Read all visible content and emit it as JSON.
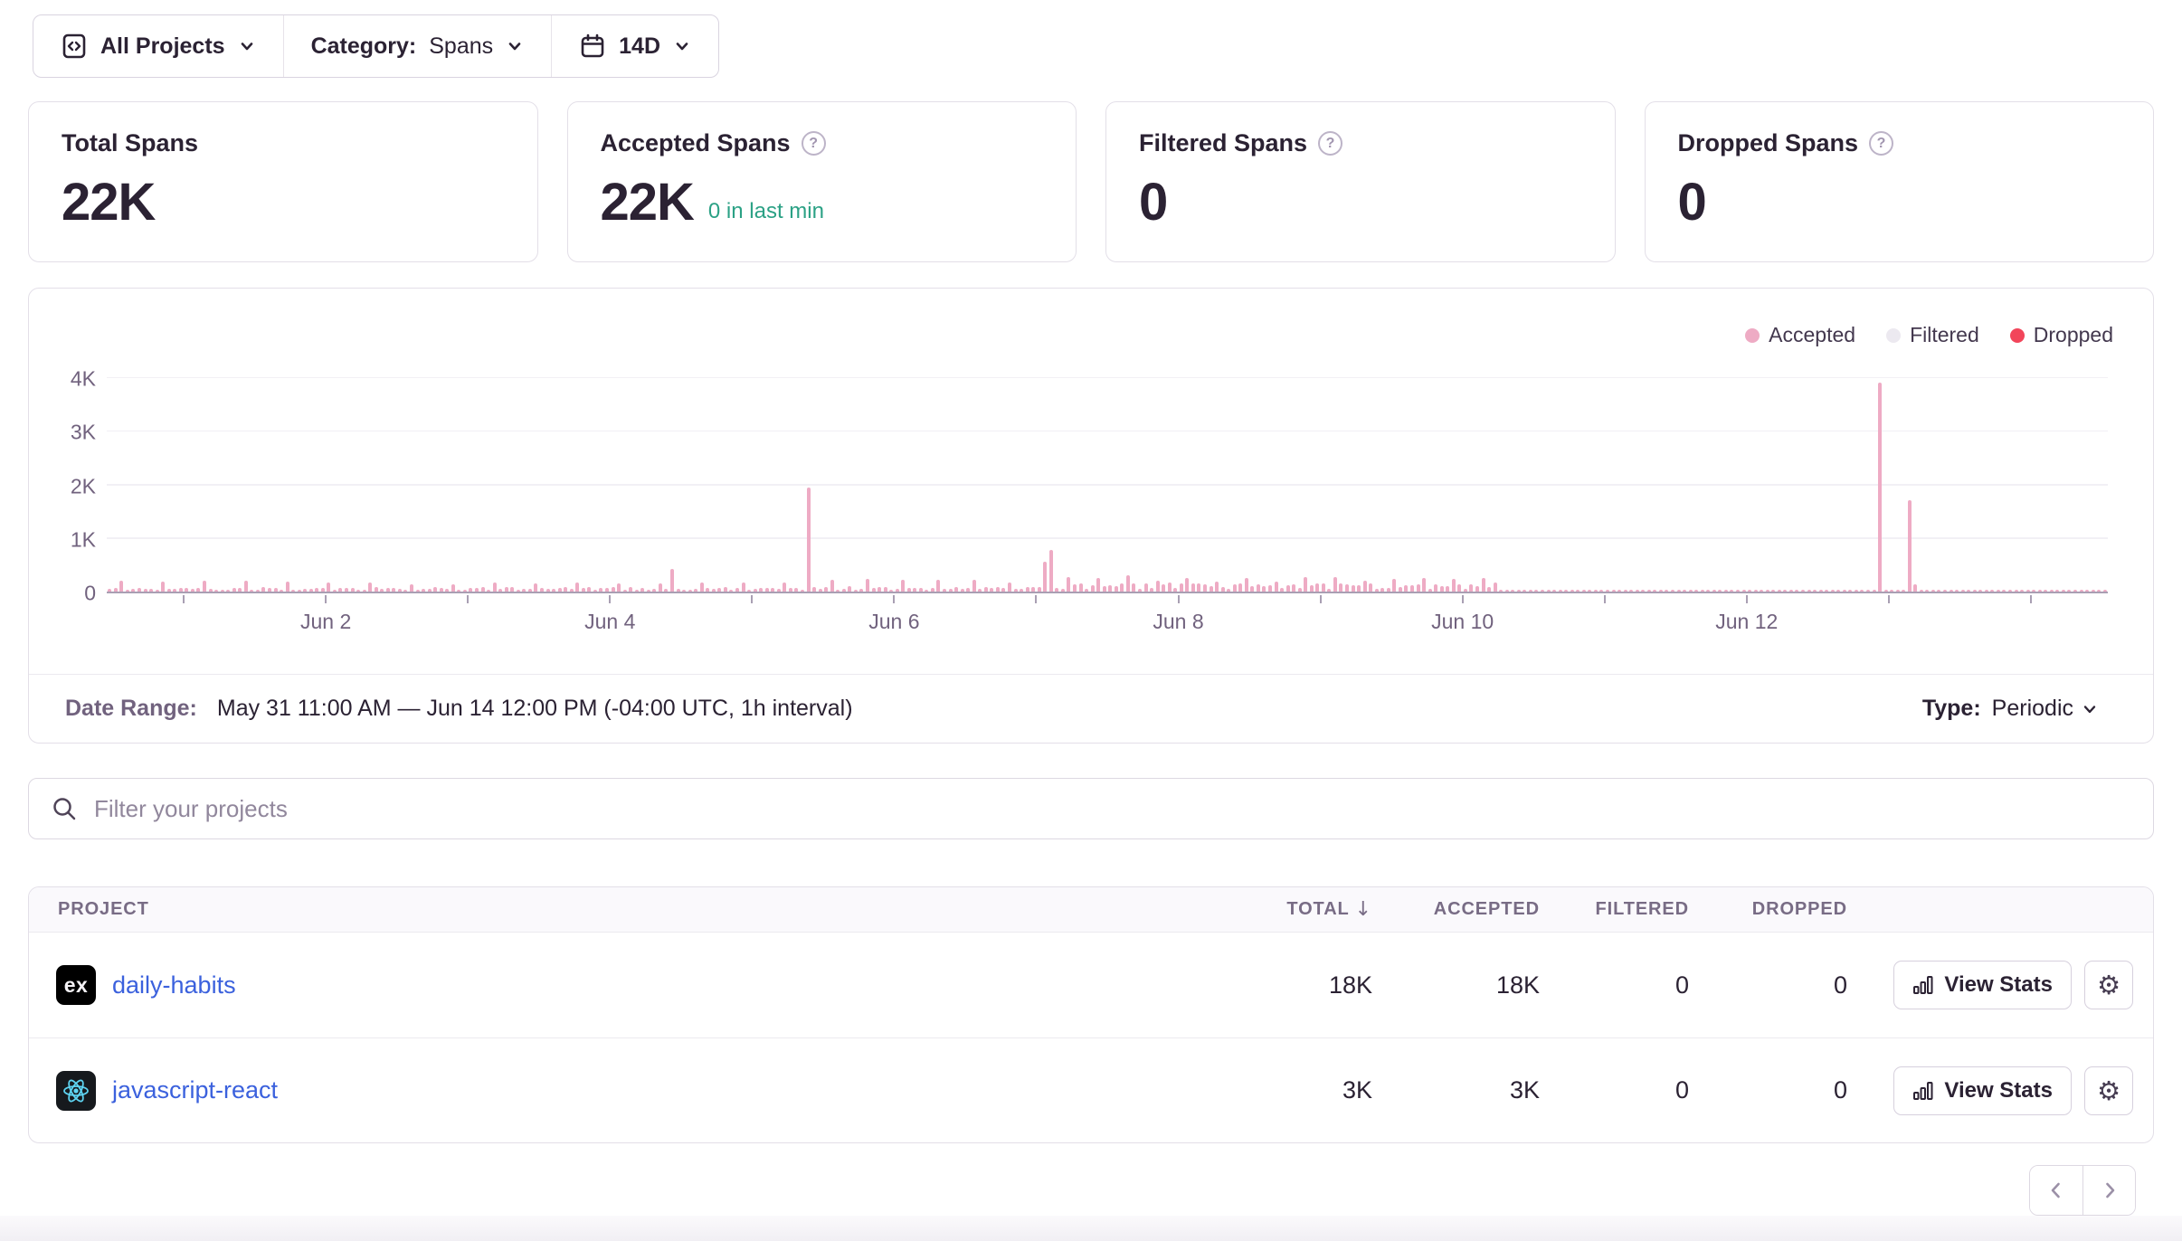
{
  "filters": {
    "projects_value": "All Projects",
    "category_label": "Category:",
    "category_value": "Spans",
    "date_range_value": "14D"
  },
  "cards": [
    {
      "title": "Total Spans",
      "value": "22K"
    },
    {
      "title": "Accepted Spans",
      "value": "22K",
      "note": "0 in last min"
    },
    {
      "title": "Filtered Spans",
      "value": "0"
    },
    {
      "title": "Dropped Spans",
      "value": "0"
    }
  ],
  "chart_data": {
    "type": "bar",
    "x_axis": {
      "start": "May 31 11:00 AM",
      "end": "Jun 14 12:00 PM",
      "interval": "1h",
      "total_bars": 338,
      "day_tick_hours": [
        13,
        37,
        61,
        85,
        109,
        133,
        157,
        181,
        205,
        229,
        253,
        277,
        301,
        325
      ],
      "labels": [
        {
          "text": "Jun 2",
          "hour": 37
        },
        {
          "text": "Jun 4",
          "hour": 85
        },
        {
          "text": "Jun 6",
          "hour": 133
        },
        {
          "text": "Jun 8",
          "hour": 181
        },
        {
          "text": "Jun 10",
          "hour": 229
        },
        {
          "text": "Jun 12",
          "hour": 277
        }
      ]
    },
    "y_axis": {
      "ticks": [
        "0",
        "1K",
        "2K",
        "3K",
        "4K"
      ],
      "max": 4000
    },
    "series": [
      {
        "name": "Accepted",
        "color": "#EEABC4"
      },
      {
        "name": "Filtered",
        "color": "#ECE9F0"
      },
      {
        "name": "Dropped",
        "color": "#F2455A"
      }
    ],
    "accepted_spikes": [
      [
        95,
        420
      ],
      [
        118,
        1950
      ],
      [
        158,
        560
      ],
      [
        159,
        780
      ],
      [
        299,
        3900
      ],
      [
        304,
        1700
      ],
      [
        305,
        130
      ]
    ],
    "accepted_noise_segments": [
      {
        "from": 0,
        "to": 116,
        "min": 20,
        "max": 85,
        "bump_every": 7,
        "bump_min": 130,
        "bump_max": 205
      },
      {
        "from": 117,
        "to": 157,
        "min": 28,
        "max": 100,
        "bump_every": 6,
        "bump_min": 150,
        "bump_max": 230
      },
      {
        "from": 158,
        "to": 234,
        "min": 45,
        "max": 165,
        "bump_every": 5,
        "bump_min": 180,
        "bump_max": 300
      },
      {
        "from": 235,
        "to": 337,
        "min": 16,
        "max": 36,
        "bump_every": 0,
        "bump_min": 0,
        "bump_max": 0
      }
    ],
    "filtered_values": "all zero",
    "dropped_values": "all zero"
  },
  "date_range": {
    "label": "Date Range:",
    "value": "May 31 11:00 AM — Jun 14 12:00 PM (-04:00 UTC, 1h interval)"
  },
  "type_selector": {
    "label": "Type:",
    "value": "Periodic"
  },
  "search": {
    "placeholder": "Filter your projects"
  },
  "table": {
    "columns": [
      "PROJECT",
      "TOTAL",
      "ACCEPTED",
      "FILTERED",
      "DROPPED"
    ],
    "view_stats_label": "View Stats",
    "rows": [
      {
        "project": "daily-habits",
        "platform": "expo",
        "platform_badge": "ex",
        "total": "18K",
        "accepted": "18K",
        "filtered": "0",
        "dropped": "0"
      },
      {
        "project": "javascript-react",
        "platform": "react",
        "total": "3K",
        "accepted": "3K",
        "filtered": "0",
        "dropped": "0"
      }
    ]
  },
  "icons": {
    "gear": "⚙",
    "sort_desc": "↓"
  },
  "colors": {
    "text_dark": "#2B2233",
    "text_muted": "#71627E",
    "border": "#E3DFE8",
    "link_blue": "#3B61DD",
    "teal": "#2BA185",
    "accepted_pink": "#EEABC4",
    "filtered_gray": "#ECE9F0",
    "dropped_red": "#F2455A",
    "react_cyan": "#5ED4F2"
  }
}
